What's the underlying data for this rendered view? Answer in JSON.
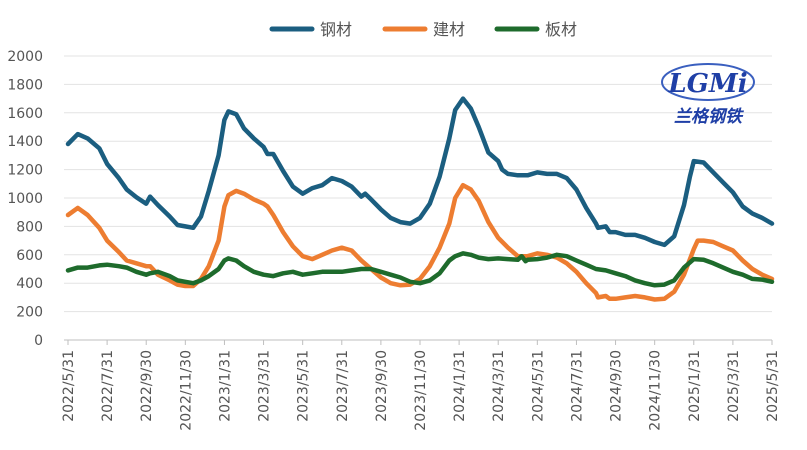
{
  "chart_data": {
    "type": "line",
    "title": "",
    "xlabel": "",
    "ylabel": "",
    "ylim": [
      0,
      2000
    ],
    "yticks": [
      0,
      200,
      400,
      600,
      800,
      1000,
      1200,
      1400,
      1600,
      1800,
      2000
    ],
    "categories": [
      "2022/5/31",
      "2022/7/31",
      "2022/9/30",
      "2022/11/30",
      "2023/1/31",
      "2023/3/31",
      "2023/5/31",
      "2023/7/31",
      "2023/9/30",
      "2023/11/30",
      "2024/1/31",
      "2024/3/31",
      "2024/5/31",
      "2024/7/31",
      "2024/9/30",
      "2024/11/30",
      "2025/1/31",
      "2025/3/31",
      "2025/5/31"
    ],
    "legend_position": "top-center",
    "grid": true,
    "series": [
      {
        "name": "钢材",
        "color": "#1b5e80",
        "points": [
          [
            0,
            1380
          ],
          [
            0.25,
            1450
          ],
          [
            0.5,
            1420
          ],
          [
            0.8,
            1350
          ],
          [
            1,
            1240
          ],
          [
            1.3,
            1140
          ],
          [
            1.5,
            1060
          ],
          [
            1.75,
            1005
          ],
          [
            2,
            960
          ],
          [
            2.1,
            1010
          ],
          [
            2.3,
            950
          ],
          [
            2.6,
            870
          ],
          [
            2.8,
            810
          ],
          [
            3,
            800
          ],
          [
            3.2,
            790
          ],
          [
            3.4,
            870
          ],
          [
            3.6,
            1050
          ],
          [
            3.85,
            1300
          ],
          [
            4,
            1550
          ],
          [
            4.1,
            1610
          ],
          [
            4.3,
            1590
          ],
          [
            4.5,
            1490
          ],
          [
            4.75,
            1420
          ],
          [
            5,
            1360
          ],
          [
            5.1,
            1310
          ],
          [
            5.25,
            1310
          ],
          [
            5.5,
            1190
          ],
          [
            5.75,
            1080
          ],
          [
            6,
            1030
          ],
          [
            6.25,
            1070
          ],
          [
            6.5,
            1090
          ],
          [
            6.75,
            1140
          ],
          [
            7,
            1120
          ],
          [
            7.25,
            1080
          ],
          [
            7.5,
            1010
          ],
          [
            7.6,
            1030
          ],
          [
            7.75,
            990
          ],
          [
            8,
            920
          ],
          [
            8.25,
            860
          ],
          [
            8.5,
            830
          ],
          [
            8.75,
            820
          ],
          [
            9,
            860
          ],
          [
            9.25,
            960
          ],
          [
            9.5,
            1150
          ],
          [
            9.75,
            1420
          ],
          [
            9.9,
            1620
          ],
          [
            10.1,
            1700
          ],
          [
            10.3,
            1630
          ],
          [
            10.5,
            1500
          ],
          [
            10.75,
            1320
          ],
          [
            11,
            1260
          ],
          [
            11.1,
            1200
          ],
          [
            11.25,
            1170
          ],
          [
            11.5,
            1160
          ],
          [
            11.75,
            1160
          ],
          [
            12,
            1180
          ],
          [
            12.25,
            1170
          ],
          [
            12.5,
            1170
          ],
          [
            12.75,
            1140
          ],
          [
            13,
            1060
          ],
          [
            13.25,
            930
          ],
          [
            13.5,
            820
          ],
          [
            13.55,
            790
          ],
          [
            13.75,
            800
          ],
          [
            13.85,
            760
          ],
          [
            14,
            760
          ],
          [
            14.25,
            740
          ],
          [
            14.5,
            740
          ],
          [
            14.75,
            720
          ],
          [
            15,
            690
          ],
          [
            15.25,
            670
          ],
          [
            15.5,
            730
          ],
          [
            15.75,
            950
          ],
          [
            15.9,
            1150
          ],
          [
            16,
            1260
          ],
          [
            16.25,
            1250
          ],
          [
            16.5,
            1180
          ],
          [
            16.75,
            1110
          ],
          [
            17,
            1040
          ],
          [
            17.25,
            940
          ],
          [
            17.5,
            890
          ],
          [
            17.75,
            860
          ],
          [
            18,
            820
          ]
        ]
      },
      {
        "name": "建材",
        "color": "#ed7d31",
        "points": [
          [
            0,
            880
          ],
          [
            0.25,
            930
          ],
          [
            0.5,
            880
          ],
          [
            0.8,
            790
          ],
          [
            1,
            700
          ],
          [
            1.3,
            620
          ],
          [
            1.5,
            560
          ],
          [
            1.75,
            540
          ],
          [
            2,
            520
          ],
          [
            2.1,
            520
          ],
          [
            2.3,
            460
          ],
          [
            2.6,
            420
          ],
          [
            2.8,
            390
          ],
          [
            3,
            380
          ],
          [
            3.2,
            380
          ],
          [
            3.4,
            430
          ],
          [
            3.6,
            520
          ],
          [
            3.85,
            700
          ],
          [
            4,
            940
          ],
          [
            4.1,
            1020
          ],
          [
            4.3,
            1050
          ],
          [
            4.5,
            1030
          ],
          [
            4.75,
            990
          ],
          [
            5,
            960
          ],
          [
            5.1,
            940
          ],
          [
            5.25,
            880
          ],
          [
            5.5,
            760
          ],
          [
            5.75,
            660
          ],
          [
            6,
            590
          ],
          [
            6.25,
            570
          ],
          [
            6.5,
            600
          ],
          [
            6.75,
            630
          ],
          [
            7,
            650
          ],
          [
            7.25,
            630
          ],
          [
            7.5,
            560
          ],
          [
            7.75,
            500
          ],
          [
            8,
            440
          ],
          [
            8.25,
            400
          ],
          [
            8.5,
            385
          ],
          [
            8.75,
            390
          ],
          [
            9,
            430
          ],
          [
            9.25,
            520
          ],
          [
            9.5,
            650
          ],
          [
            9.75,
            820
          ],
          [
            9.9,
            1000
          ],
          [
            10.1,
            1090
          ],
          [
            10.3,
            1060
          ],
          [
            10.5,
            980
          ],
          [
            10.75,
            830
          ],
          [
            11,
            720
          ],
          [
            11.25,
            650
          ],
          [
            11.5,
            590
          ],
          [
            11.75,
            590
          ],
          [
            12,
            610
          ],
          [
            12.25,
            600
          ],
          [
            12.5,
            580
          ],
          [
            12.75,
            540
          ],
          [
            13,
            480
          ],
          [
            13.25,
            400
          ],
          [
            13.5,
            330
          ],
          [
            13.55,
            300
          ],
          [
            13.75,
            310
          ],
          [
            13.85,
            290
          ],
          [
            14,
            290
          ],
          [
            14.25,
            300
          ],
          [
            14.5,
            310
          ],
          [
            14.75,
            300
          ],
          [
            15,
            285
          ],
          [
            15.25,
            290
          ],
          [
            15.5,
            340
          ],
          [
            15.75,
            460
          ],
          [
            16,
            640
          ],
          [
            16.1,
            700
          ],
          [
            16.25,
            700
          ],
          [
            16.5,
            690
          ],
          [
            16.75,
            660
          ],
          [
            17,
            630
          ],
          [
            17.25,
            560
          ],
          [
            17.5,
            500
          ],
          [
            17.75,
            460
          ],
          [
            18,
            430
          ]
        ]
      },
      {
        "name": "板材",
        "color": "#1e6b2c",
        "points": [
          [
            0,
            490
          ],
          [
            0.25,
            510
          ],
          [
            0.5,
            510
          ],
          [
            0.8,
            525
          ],
          [
            1,
            530
          ],
          [
            1.3,
            520
          ],
          [
            1.5,
            510
          ],
          [
            1.75,
            480
          ],
          [
            2,
            460
          ],
          [
            2.1,
            470
          ],
          [
            2.3,
            480
          ],
          [
            2.6,
            450
          ],
          [
            2.8,
            420
          ],
          [
            3,
            410
          ],
          [
            3.2,
            400
          ],
          [
            3.4,
            420
          ],
          [
            3.6,
            450
          ],
          [
            3.85,
            500
          ],
          [
            4,
            560
          ],
          [
            4.1,
            575
          ],
          [
            4.3,
            560
          ],
          [
            4.5,
            520
          ],
          [
            4.75,
            480
          ],
          [
            5,
            460
          ],
          [
            5.25,
            450
          ],
          [
            5.5,
            470
          ],
          [
            5.75,
            480
          ],
          [
            6,
            460
          ],
          [
            6.25,
            470
          ],
          [
            6.5,
            480
          ],
          [
            6.75,
            480
          ],
          [
            7,
            480
          ],
          [
            7.25,
            490
          ],
          [
            7.5,
            500
          ],
          [
            7.75,
            500
          ],
          [
            8,
            480
          ],
          [
            8.25,
            460
          ],
          [
            8.5,
            440
          ],
          [
            8.75,
            410
          ],
          [
            9,
            400
          ],
          [
            9.25,
            420
          ],
          [
            9.5,
            470
          ],
          [
            9.75,
            560
          ],
          [
            9.9,
            590
          ],
          [
            10.1,
            610
          ],
          [
            10.3,
            600
          ],
          [
            10.5,
            580
          ],
          [
            10.75,
            570
          ],
          [
            11,
            575
          ],
          [
            11.25,
            570
          ],
          [
            11.5,
            565
          ],
          [
            11.6,
            590
          ],
          [
            11.7,
            555
          ],
          [
            11.75,
            565
          ],
          [
            12,
            570
          ],
          [
            12.25,
            580
          ],
          [
            12.5,
            600
          ],
          [
            12.75,
            590
          ],
          [
            13,
            560
          ],
          [
            13.25,
            530
          ],
          [
            13.5,
            500
          ],
          [
            13.75,
            490
          ],
          [
            14,
            470
          ],
          [
            14.25,
            450
          ],
          [
            14.5,
            420
          ],
          [
            14.75,
            400
          ],
          [
            15,
            385
          ],
          [
            15.25,
            390
          ],
          [
            15.5,
            420
          ],
          [
            15.75,
            510
          ],
          [
            16,
            570
          ],
          [
            16.25,
            565
          ],
          [
            16.5,
            540
          ],
          [
            16.75,
            510
          ],
          [
            17,
            480
          ],
          [
            17.25,
            460
          ],
          [
            17.5,
            430
          ],
          [
            17.75,
            425
          ],
          [
            18,
            410
          ]
        ]
      }
    ]
  },
  "logo": {
    "letters": "LGMi",
    "subtitle": "兰格钢铁",
    "colors": {
      "blue": "#1f3fa6",
      "red": "#d9232e"
    }
  }
}
